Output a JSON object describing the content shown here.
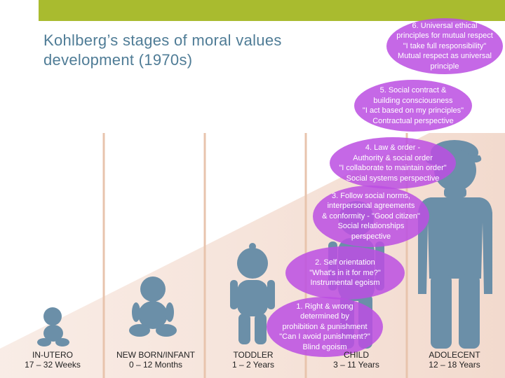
{
  "title": {
    "line1": "Kohlberg’s stages of moral values",
    "line2": "development (1970s)"
  },
  "stages": [
    {
      "name": "stage-1",
      "lines": [
        "1. Right & wrong",
        "determined by",
        "prohibition & punishment",
        "\"Can I avoid punishment?\"",
        "Blind egoism"
      ]
    },
    {
      "name": "stage-2",
      "lines": [
        "2. Self orientation",
        "\"What's in it for me?\"",
        "Instrumental egoism"
      ]
    },
    {
      "name": "stage-3",
      "lines": [
        "3. Follow social norms,",
        "interpersonal agreements",
        "& conformity - \"Good citizen\"",
        "Social relationships",
        "perspective"
      ]
    },
    {
      "name": "stage-4",
      "lines": [
        "4. Law & order -",
        "Authority & social order",
        "\"I collaborate to maintain order\"",
        "Social systems perspective"
      ]
    },
    {
      "name": "stage-5",
      "lines": [
        "5. Social contract &",
        "building consciousness",
        "\"I act based on my principles\"",
        "Contractual perspective"
      ]
    },
    {
      "name": "stage-6",
      "lines": [
        "6. Universal ethical",
        "principles for mutual respect",
        "\"I take full responsibility\"",
        "Mutual respect as universal",
        "principle"
      ]
    }
  ],
  "ages": [
    {
      "name": "in-utero",
      "label": "IN-UTERO",
      "range": "17 – 32 Weeks"
    },
    {
      "name": "newborn",
      "label": "NEW BORN/INFANT",
      "range": "0 – 12 Months"
    },
    {
      "name": "toddler",
      "label": "TODDLER",
      "range": "1 – 2 Years"
    },
    {
      "name": "child",
      "label": "CHILD",
      "range": "3 – 11 Years"
    },
    {
      "name": "adolescent",
      "label": "ADOLECENT",
      "range": "12 – 18 Years"
    }
  ],
  "colors": {
    "accent_bar": "#a9bb2f",
    "title": "#4f7c96",
    "bubble": "#bb4fe2",
    "figure": "#6b8fa8",
    "ramp": "#f4ded4",
    "divider": "#e8c4ad"
  }
}
